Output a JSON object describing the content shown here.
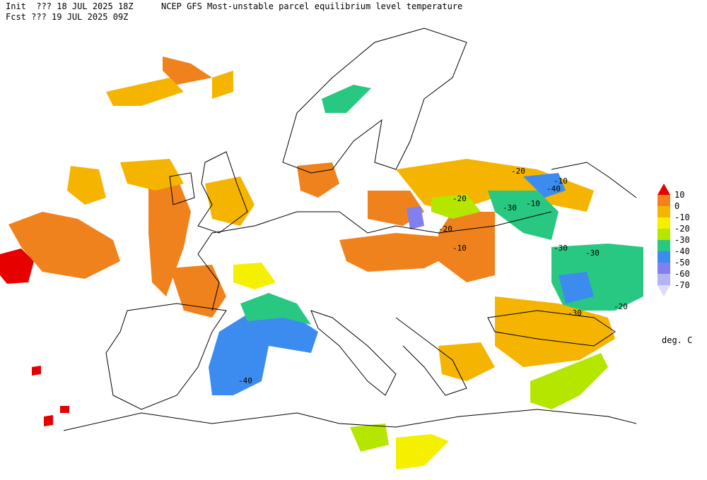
{
  "header": {
    "init": "Init  ??? 18 JUL 2025 18Z",
    "title": "NCEP GFS Most-unstable parcel equilibrium level temperature",
    "forecast": "Fcst ??? 19 JUL 2025 09Z"
  },
  "legend": {
    "levels": [
      10,
      0,
      -10,
      -20,
      -30,
      -40,
      -50,
      -60,
      -70
    ],
    "colors": [
      "#e60000",
      "#f0821e",
      "#f5b400",
      "#f5f000",
      "#b4e600",
      "#28c882",
      "#3c8cf0",
      "#8080f0",
      "#b4b4f0",
      "#dcdcf8"
    ],
    "units": "deg. C"
  },
  "contour_labels": [
    "-20",
    "-10",
    "-40",
    "-30",
    "-10",
    "-20",
    "-20",
    "-10",
    "-30",
    "-30",
    "-20",
    "-30",
    "-40"
  ]
}
